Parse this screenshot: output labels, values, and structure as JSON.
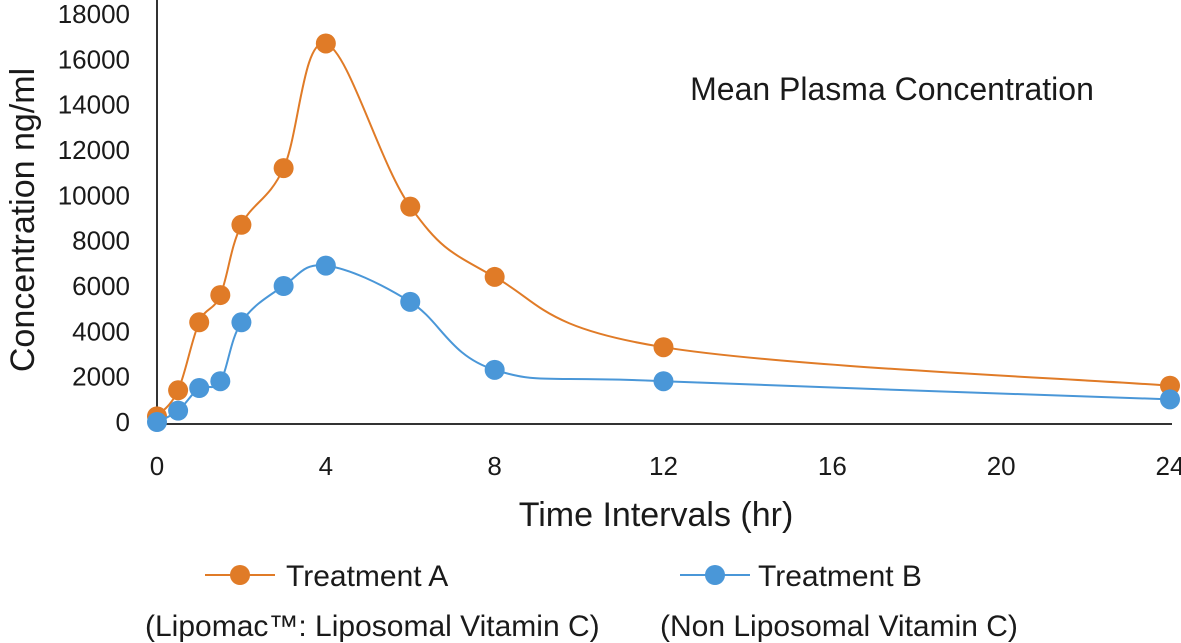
{
  "chart_data": {
    "type": "line",
    "title": "Mean Plasma Concentration",
    "xlabel": "Time Intervals (hr)",
    "ylabel": "Concentration ng/ml",
    "xlim": [
      0,
      24
    ],
    "ylim": [
      0,
      18000
    ],
    "xticks": [
      "0",
      "4",
      "8",
      "12",
      "16",
      "20",
      "24"
    ],
    "yticks": [
      "0",
      "2000",
      "4000",
      "6000",
      "8000",
      "10000",
      "12000",
      "14000",
      "16000",
      "18000"
    ],
    "grid": false,
    "legend_position": "bottom",
    "x": [
      0,
      0.5,
      1,
      1.5,
      2,
      3,
      4,
      6,
      8,
      12,
      24
    ],
    "series": [
      {
        "name": "Treatment A",
        "subtitle": "(Lipomac™: Liposomal Vitamin C)",
        "color": "#e07b27",
        "values": [
          250,
          1400,
          4400,
          5600,
          8700,
          11200,
          16700,
          9500,
          6400,
          3300,
          1600
        ]
      },
      {
        "name": "Treatment B",
        "subtitle": "(Non Liposomal Vitamin C)",
        "color": "#4a97d8",
        "values": [
          0,
          500,
          1500,
          1800,
          4400,
          6000,
          6900,
          5300,
          2300,
          1800,
          1000
        ]
      }
    ]
  }
}
